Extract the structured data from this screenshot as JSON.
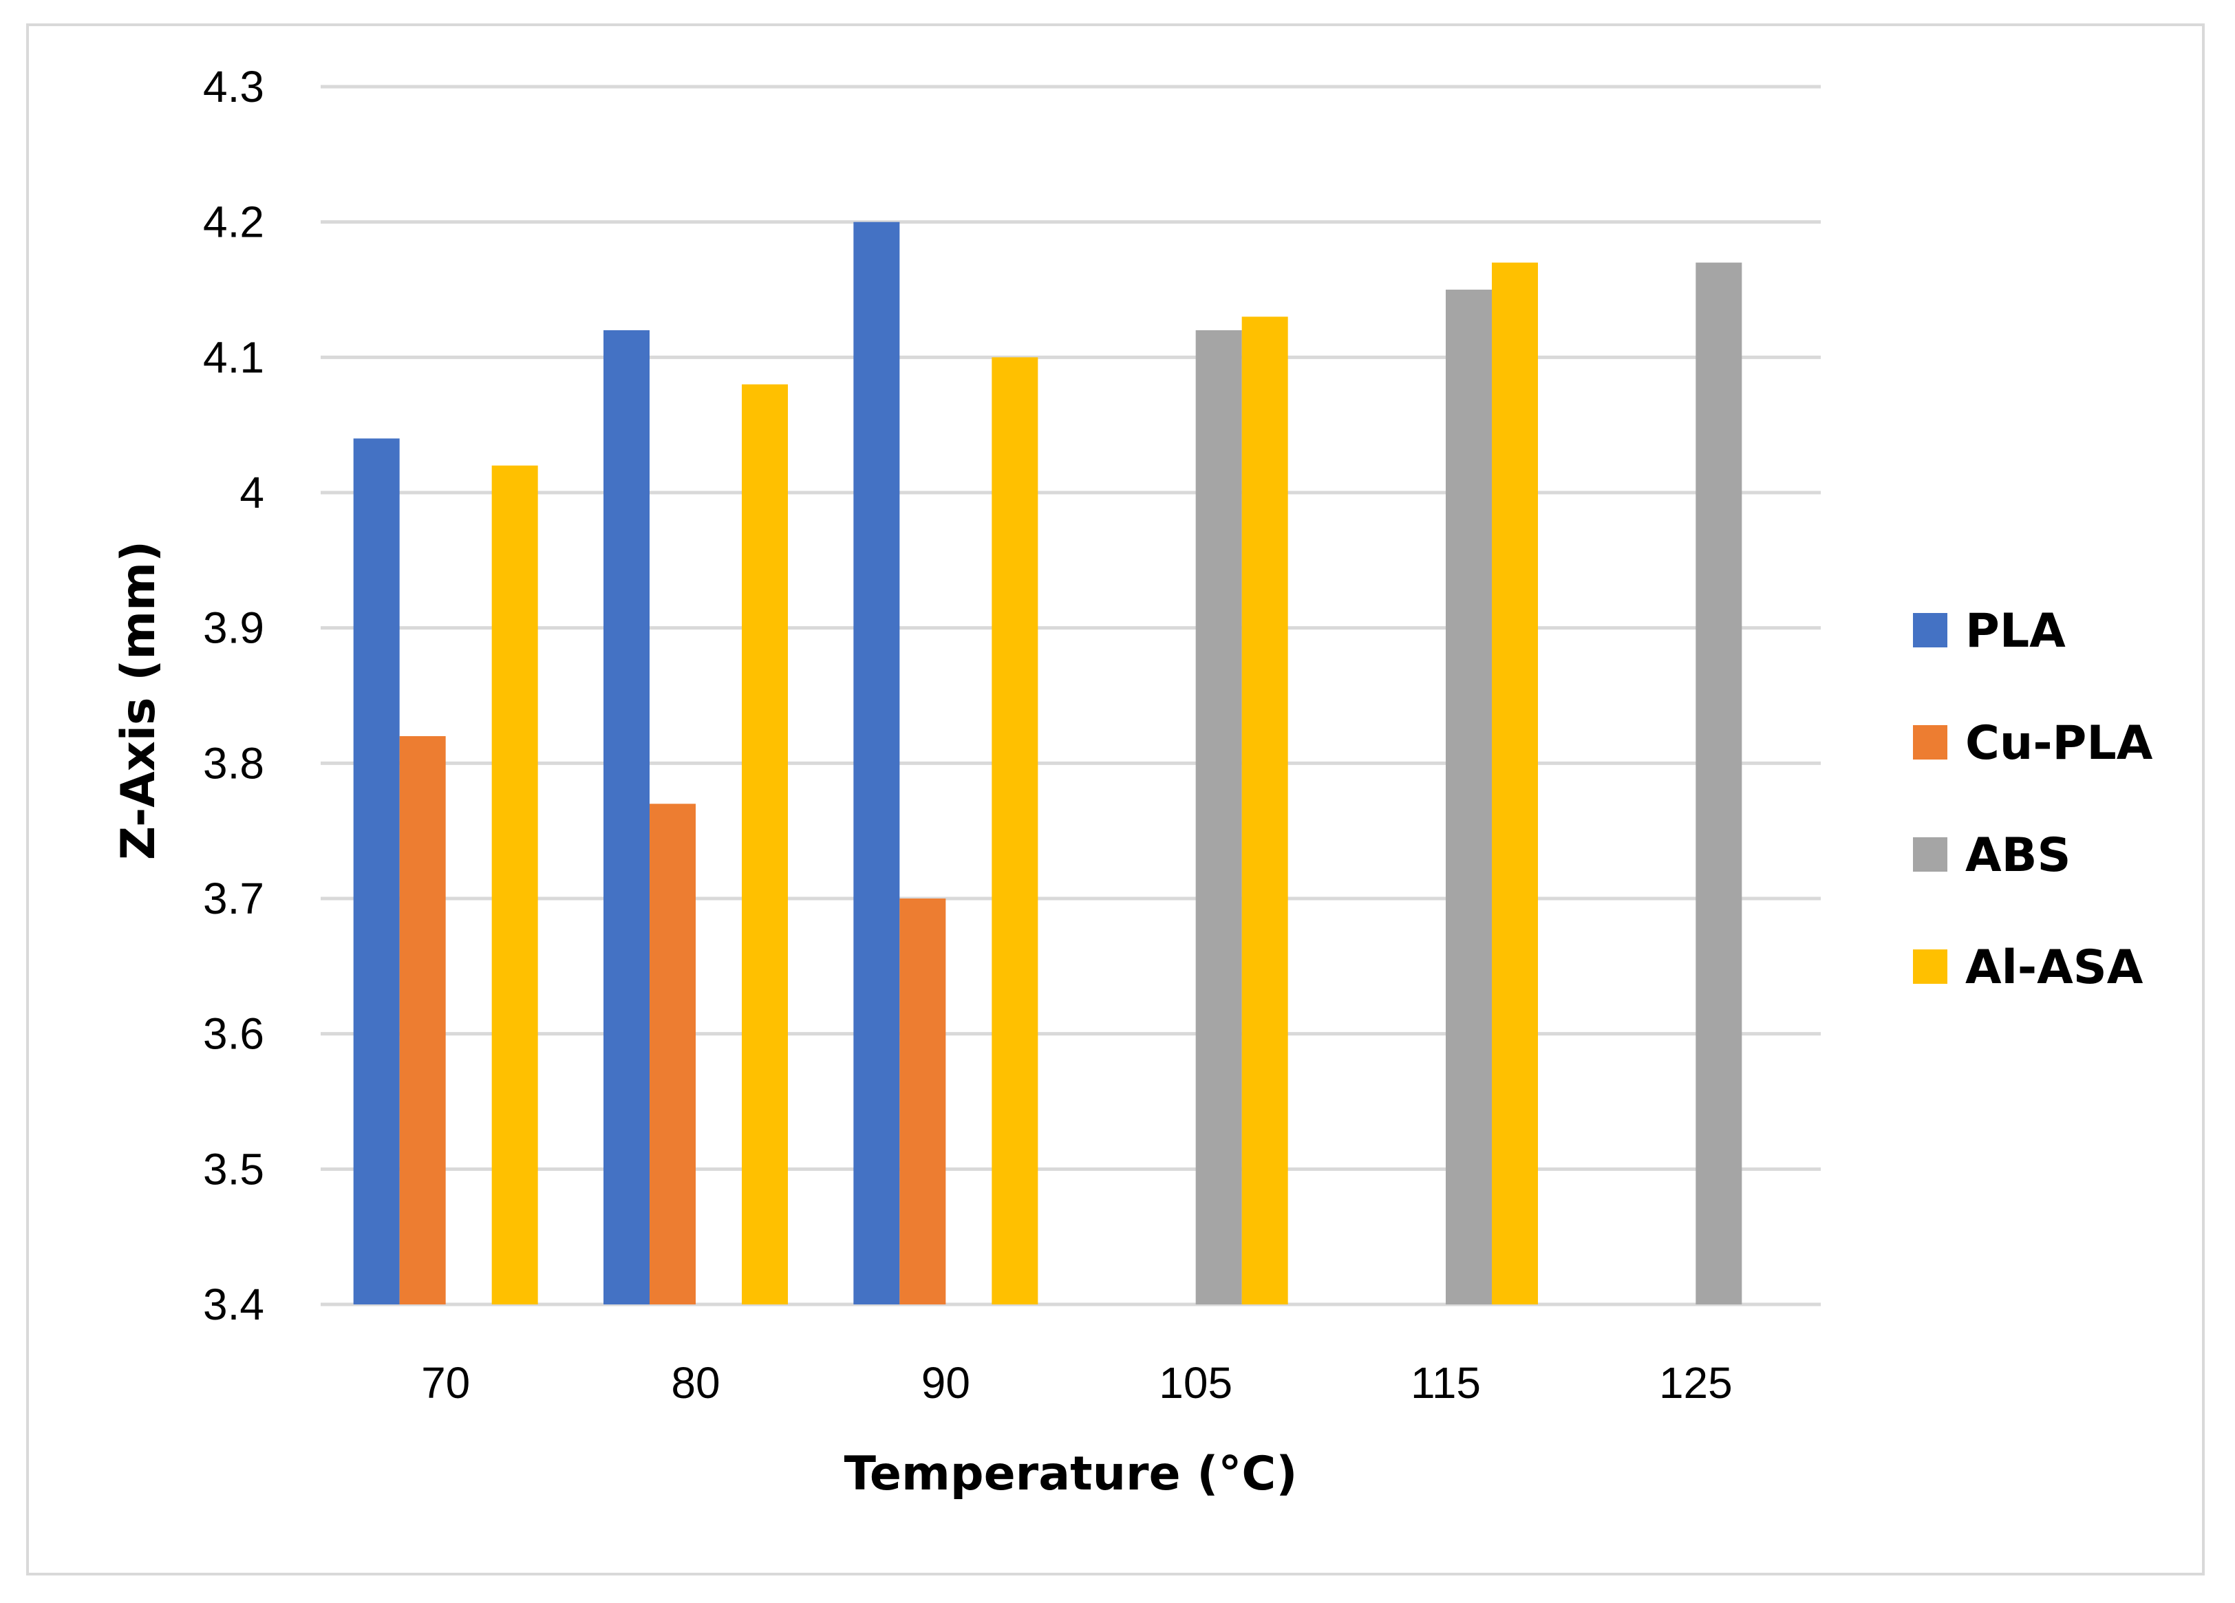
{
  "chart_data": {
    "type": "bar",
    "title": "",
    "xlabel": "Temperature (°C)",
    "ylabel": "Z-Axis (mm)",
    "ylim": [
      3.4,
      4.3
    ],
    "yticks": [
      "3.4",
      "3.5",
      "3.6",
      "3.7",
      "3.8",
      "3.9",
      "4",
      "4.1",
      "4.2",
      "4.3"
    ],
    "ytick_values": [
      3.4,
      3.5,
      3.6,
      3.7,
      3.8,
      3.9,
      4.0,
      4.1,
      4.2,
      4.3
    ],
    "grid": true,
    "legend_position": "right",
    "categories": [
      "70",
      "80",
      "90",
      "105",
      "115",
      "125"
    ],
    "series": [
      {
        "name": "PLA",
        "color": "#4472C4",
        "values": [
          4.04,
          4.12,
          4.2,
          null,
          null,
          null
        ]
      },
      {
        "name": "Cu-PLA",
        "color": "#ED7D31",
        "values": [
          3.82,
          3.77,
          3.7,
          null,
          null,
          null
        ]
      },
      {
        "name": "ABS",
        "color": "#A5A5A5",
        "values": [
          null,
          null,
          null,
          4.12,
          4.15,
          4.17
        ]
      },
      {
        "name": "Al-ASA",
        "color": "#FFC000",
        "values": [
          4.02,
          4.08,
          4.1,
          4.13,
          4.17,
          null
        ]
      }
    ]
  }
}
